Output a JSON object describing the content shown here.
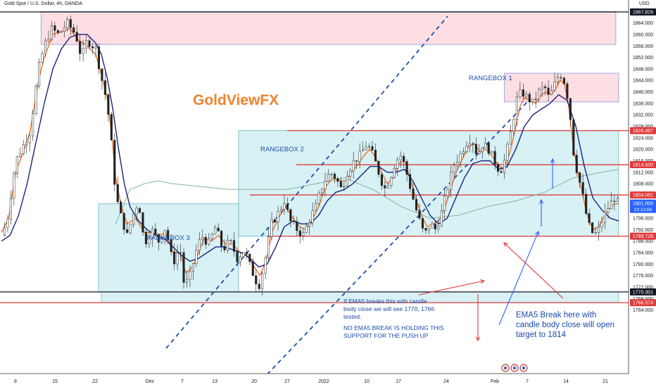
{
  "chart_data": {
    "type": "candlestick",
    "title": "Gold Spot / U.S. Dollar, 4h, OANDA",
    "y_axis_unit": "USD",
    "ylim": [
      1763,
      1871
    ],
    "y_ticks": [
      1764,
      1768,
      1772,
      1776,
      1780,
      1784,
      1788,
      1792,
      1796,
      1800,
      1804,
      1808,
      1812,
      1816,
      1820,
      1824,
      1828,
      1832,
      1836,
      1840,
      1844,
      1848,
      1852,
      1856,
      1860,
      1864
    ],
    "x_tick_labels": [
      "8",
      "15",
      "22",
      "Dec",
      "7",
      "13",
      "20",
      "27",
      "2022",
      "10",
      "17",
      "24",
      "Feb",
      "7",
      "14",
      "21"
    ],
    "price_path": [
      [
        0,
        1790
      ],
      [
        0.4,
        1795
      ],
      [
        1.0,
        1816
      ],
      [
        1.6,
        1822
      ],
      [
        2.0,
        1826
      ],
      [
        2.6,
        1848
      ],
      [
        3.0,
        1856
      ],
      [
        3.5,
        1862
      ],
      [
        4.0,
        1860
      ],
      [
        4.6,
        1864
      ],
      [
        5.2,
        1860
      ],
      [
        5.6,
        1852
      ],
      [
        6.0,
        1858
      ],
      [
        6.6,
        1855
      ],
      [
        7.0,
        1845
      ],
      [
        7.4,
        1836
      ],
      [
        7.7,
        1822
      ],
      [
        8.0,
        1804
      ],
      [
        8.4,
        1796
      ],
      [
        8.8,
        1790
      ],
      [
        9.2,
        1797
      ],
      [
        9.6,
        1802
      ],
      [
        10.0,
        1787
      ],
      [
        10.5,
        1792
      ],
      [
        11.0,
        1788
      ],
      [
        11.5,
        1793
      ],
      [
        12.0,
        1780
      ],
      [
        12.5,
        1786
      ],
      [
        12.8,
        1772
      ],
      [
        13.2,
        1776
      ],
      [
        13.6,
        1784
      ],
      [
        14.0,
        1790
      ],
      [
        14.5,
        1787
      ],
      [
        15.0,
        1793
      ],
      [
        15.5,
        1785
      ],
      [
        16.0,
        1788
      ],
      [
        16.5,
        1782
      ],
      [
        17.0,
        1785
      ],
      [
        17.5,
        1778
      ],
      [
        18.0,
        1772
      ],
      [
        18.4,
        1780
      ],
      [
        18.9,
        1794
      ],
      [
        19.4,
        1798
      ],
      [
        19.8,
        1802
      ],
      [
        20.2,
        1795
      ],
      [
        20.7,
        1792
      ],
      [
        21.1,
        1790
      ],
      [
        21.6,
        1796
      ],
      [
        22.0,
        1800
      ],
      [
        22.5,
        1808
      ],
      [
        23.0,
        1812
      ],
      [
        23.4,
        1810
      ],
      [
        23.8,
        1806
      ],
      [
        24.2,
        1812
      ],
      [
        24.7,
        1816
      ],
      [
        25.1,
        1818
      ],
      [
        25.6,
        1822
      ],
      [
        26.0,
        1818
      ],
      [
        26.4,
        1812
      ],
      [
        26.8,
        1806
      ],
      [
        27.2,
        1810
      ],
      [
        27.6,
        1816
      ],
      [
        28.0,
        1818
      ],
      [
        28.4,
        1811
      ],
      [
        28.8,
        1803
      ],
      [
        29.2,
        1796
      ],
      [
        29.6,
        1790
      ],
      [
        30.0,
        1794
      ],
      [
        30.4,
        1792
      ],
      [
        30.8,
        1798
      ],
      [
        31.3,
        1808
      ],
      [
        31.7,
        1815
      ],
      [
        32.1,
        1818
      ],
      [
        32.5,
        1822
      ],
      [
        32.9,
        1824
      ],
      [
        33.3,
        1818
      ],
      [
        33.7,
        1822
      ],
      [
        34.1,
        1820
      ],
      [
        34.5,
        1816
      ],
      [
        34.9,
        1812
      ],
      [
        35.2,
        1816
      ],
      [
        35.5,
        1822
      ],
      [
        35.8,
        1830
      ],
      [
        36.1,
        1838
      ],
      [
        36.4,
        1840
      ],
      [
        36.8,
        1838
      ],
      [
        37.2,
        1836
      ],
      [
        37.6,
        1840
      ],
      [
        38.0,
        1842
      ],
      [
        38.3,
        1838
      ],
      [
        38.6,
        1841
      ],
      [
        38.9,
        1845
      ],
      [
        39.2,
        1846
      ],
      [
        39.5,
        1842
      ],
      [
        39.8,
        1832
      ],
      [
        40.0,
        1820
      ],
      [
        40.3,
        1812
      ],
      [
        40.6,
        1806
      ],
      [
        40.9,
        1798
      ],
      [
        41.2,
        1792
      ],
      [
        41.5,
        1790
      ],
      [
        41.8,
        1792
      ],
      [
        42.1,
        1796
      ],
      [
        42.5,
        1800
      ],
      [
        42.9,
        1803
      ],
      [
        43.2,
        1801
      ]
    ],
    "ema_fast": [
      [
        0,
        1791
      ],
      [
        0.5,
        1796
      ],
      [
        1.0,
        1812
      ],
      [
        1.6,
        1820
      ],
      [
        2.0,
        1826
      ],
      [
        2.6,
        1844
      ],
      [
        3.0,
        1852
      ],
      [
        3.6,
        1860
      ],
      [
        4.2,
        1861
      ],
      [
        4.8,
        1862
      ],
      [
        5.4,
        1858
      ],
      [
        6.0,
        1856
      ],
      [
        6.6,
        1853
      ],
      [
        7.0,
        1846
      ],
      [
        7.4,
        1838
      ],
      [
        7.7,
        1826
      ],
      [
        8.0,
        1810
      ],
      [
        8.4,
        1800
      ],
      [
        8.8,
        1794
      ],
      [
        9.4,
        1796
      ],
      [
        10.0,
        1791
      ],
      [
        10.5,
        1791
      ],
      [
        11.0,
        1790
      ],
      [
        11.5,
        1791
      ],
      [
        12.0,
        1784
      ],
      [
        12.5,
        1784
      ],
      [
        12.9,
        1777
      ],
      [
        13.4,
        1779
      ],
      [
        13.8,
        1784
      ],
      [
        14.2,
        1789
      ],
      [
        14.7,
        1788
      ],
      [
        15.2,
        1790
      ],
      [
        15.7,
        1787
      ],
      [
        16.2,
        1787
      ],
      [
        16.7,
        1784
      ],
      [
        17.2,
        1783
      ],
      [
        17.7,
        1779
      ],
      [
        18.1,
        1776
      ],
      [
        18.5,
        1781
      ],
      [
        19.0,
        1792
      ],
      [
        19.5,
        1797
      ],
      [
        19.9,
        1800
      ],
      [
        20.4,
        1796
      ],
      [
        20.9,
        1793
      ],
      [
        21.3,
        1792
      ],
      [
        21.8,
        1796
      ],
      [
        22.2,
        1800
      ],
      [
        22.7,
        1807
      ],
      [
        23.2,
        1810
      ],
      [
        23.7,
        1809
      ],
      [
        24.1,
        1809
      ],
      [
        24.5,
        1812
      ],
      [
        25.0,
        1815
      ],
      [
        25.4,
        1818
      ],
      [
        25.8,
        1820
      ],
      [
        26.2,
        1817
      ],
      [
        26.6,
        1812
      ],
      [
        27.0,
        1808
      ],
      [
        27.4,
        1810
      ],
      [
        27.8,
        1815
      ],
      [
        28.2,
        1816
      ],
      [
        28.6,
        1810
      ],
      [
        29.0,
        1803
      ],
      [
        29.4,
        1797
      ],
      [
        29.8,
        1793
      ],
      [
        30.2,
        1794
      ],
      [
        30.6,
        1795
      ],
      [
        31.0,
        1799
      ],
      [
        31.5,
        1807
      ],
      [
        31.9,
        1813
      ],
      [
        32.3,
        1817
      ],
      [
        32.7,
        1821
      ],
      [
        33.1,
        1822
      ],
      [
        33.5,
        1819
      ],
      [
        33.9,
        1820
      ],
      [
        34.3,
        1818
      ],
      [
        34.7,
        1815
      ],
      [
        35.1,
        1813
      ],
      [
        35.4,
        1816
      ],
      [
        35.7,
        1821
      ],
      [
        36.0,
        1828
      ],
      [
        36.3,
        1835
      ],
      [
        36.6,
        1838
      ],
      [
        37.0,
        1837
      ],
      [
        37.4,
        1836
      ],
      [
        37.8,
        1839
      ],
      [
        38.2,
        1840
      ],
      [
        38.5,
        1839
      ],
      [
        38.8,
        1841
      ],
      [
        39.1,
        1844
      ],
      [
        39.4,
        1843
      ],
      [
        39.7,
        1835
      ],
      [
        40.0,
        1822
      ],
      [
        40.3,
        1813
      ],
      [
        40.6,
        1806
      ],
      [
        40.9,
        1799
      ],
      [
        41.2,
        1794
      ],
      [
        41.5,
        1792
      ],
      [
        41.8,
        1793
      ],
      [
        42.1,
        1796
      ],
      [
        42.5,
        1799
      ],
      [
        42.9,
        1801
      ],
      [
        43.2,
        1801
      ]
    ],
    "ema_slow": [
      [
        0,
        1788
      ],
      [
        0.6,
        1790
      ],
      [
        1.2,
        1797
      ],
      [
        1.8,
        1808
      ],
      [
        2.4,
        1822
      ],
      [
        3.0,
        1836
      ],
      [
        3.6,
        1848
      ],
      [
        4.2,
        1855
      ],
      [
        4.8,
        1859
      ],
      [
        5.4,
        1860
      ],
      [
        6.0,
        1860
      ],
      [
        6.6,
        1857
      ],
      [
        7.0,
        1853
      ],
      [
        7.4,
        1845
      ],
      [
        7.8,
        1834
      ],
      [
        8.2,
        1820
      ],
      [
        8.6,
        1808
      ],
      [
        9.0,
        1800
      ],
      [
        9.6,
        1795
      ],
      [
        10.2,
        1792
      ],
      [
        10.8,
        1790
      ],
      [
        11.4,
        1789
      ],
      [
        12.0,
        1786
      ],
      [
        12.6,
        1783
      ],
      [
        13.2,
        1781
      ],
      [
        13.8,
        1782
      ],
      [
        14.4,
        1784
      ],
      [
        15.0,
        1786
      ],
      [
        15.6,
        1786
      ],
      [
        16.2,
        1785
      ],
      [
        16.8,
        1784
      ],
      [
        17.4,
        1782
      ],
      [
        18.0,
        1779
      ],
      [
        18.6,
        1780
      ],
      [
        19.2,
        1786
      ],
      [
        19.8,
        1793
      ],
      [
        20.4,
        1795
      ],
      [
        21.0,
        1794
      ],
      [
        21.6,
        1794
      ],
      [
        22.2,
        1797
      ],
      [
        22.8,
        1802
      ],
      [
        23.4,
        1805
      ],
      [
        24.0,
        1806
      ],
      [
        24.6,
        1808
      ],
      [
        25.2,
        1811
      ],
      [
        25.8,
        1814
      ],
      [
        26.4,
        1814
      ],
      [
        27.0,
        1812
      ],
      [
        27.6,
        1812
      ],
      [
        28.2,
        1813
      ],
      [
        28.8,
        1809
      ],
      [
        29.4,
        1803
      ],
      [
        30.0,
        1797
      ],
      [
        30.6,
        1794
      ],
      [
        31.2,
        1796
      ],
      [
        31.8,
        1803
      ],
      [
        32.4,
        1810
      ],
      [
        33.0,
        1815
      ],
      [
        33.6,
        1816
      ],
      [
        34.2,
        1816
      ],
      [
        34.8,
        1813
      ],
      [
        35.4,
        1814
      ],
      [
        36.0,
        1820
      ],
      [
        36.6,
        1828
      ],
      [
        37.2,
        1832
      ],
      [
        37.8,
        1834
      ],
      [
        38.4,
        1836
      ],
      [
        39.0,
        1839
      ],
      [
        39.6,
        1837
      ],
      [
        40.2,
        1828
      ],
      [
        40.8,
        1814
      ],
      [
        41.4,
        1803
      ],
      [
        42.0,
        1799
      ],
      [
        42.6,
        1796
      ],
      [
        43.2,
        1795
      ]
    ],
    "ma_long": [
      [
        8.0,
        1794
      ],
      [
        9.0,
        1806
      ],
      [
        10.0,
        1808
      ],
      [
        11.0,
        1809
      ],
      [
        12.0,
        1808
      ],
      [
        14.0,
        1807
      ],
      [
        16.0,
        1806
      ],
      [
        18.0,
        1806
      ],
      [
        20.0,
        1806
      ],
      [
        22.0,
        1808
      ],
      [
        24.0,
        1810
      ],
      [
        26.0,
        1806
      ],
      [
        28.0,
        1800
      ],
      [
        30.0,
        1796
      ],
      [
        32.0,
        1797
      ],
      [
        34.0,
        1800
      ],
      [
        36.0,
        1802
      ],
      [
        38.0,
        1805
      ],
      [
        40.0,
        1810
      ],
      [
        42.0,
        1812
      ],
      [
        43.2,
        1813
      ]
    ],
    "price_levels": [
      {
        "label": "1867.826",
        "value": 1867.826,
        "color": "#131722"
      },
      {
        "label": "1826.497",
        "value": 1826.497,
        "color": "#e03a3a"
      },
      {
        "label": "1814.630",
        "value": 1814.63,
        "color": "#e03a3a"
      },
      {
        "label": "1804.081",
        "value": 1804.081,
        "color": "#e03a3a"
      },
      {
        "label": "1789.729",
        "value": 1789.729,
        "color": "#e03a3a"
      },
      {
        "label": "1770.301",
        "value": 1770.301,
        "color": "#131722"
      },
      {
        "label": "1766.574",
        "value": 1766.574,
        "color": "#e03a3a"
      }
    ],
    "current_price": {
      "value": 1801.0,
      "label": "1801.000",
      "countdown": "02:12:09",
      "color": "#2962ff"
    },
    "range_boxes": [
      {
        "label": "",
        "x0": 1.0,
        "x1": 43.0,
        "y0": 1856.5,
        "y1": 1868,
        "fill": "#fbd3da",
        "stroke": "#8a9ae0"
      },
      {
        "label": "RANGEBOX 1",
        "x0": 35.2,
        "x1": 43.2,
        "y0": 1836.5,
        "y1": 1846.5,
        "fill": "#fbd3da",
        "stroke": "#8a9ae0"
      },
      {
        "label": "RANGEBOX 2",
        "x0": 16.6,
        "x1": 43.2,
        "y0": 1789.7,
        "y1": 1826.5,
        "fill": "#c9ecf2",
        "stroke": "#6fb6c9"
      },
      {
        "label": "RANGEBOX 3",
        "x0": 6.8,
        "x1": 16.6,
        "y0": 1770.3,
        "y1": 1801.0,
        "fill": "#c9ecf2",
        "stroke": "#6fb6c9"
      },
      {
        "label": "",
        "x0": 7.0,
        "x1": 43.2,
        "y0": 1766.6,
        "y1": 1770.3,
        "fill": "#c9ecf2",
        "stroke": "#6fb6c9"
      }
    ],
    "annotations": {
      "brand": "GoldViewFX",
      "note_ema_break": [
        "If EMA5 breaks this with candle",
        "body close we will see 1770, 1766",
        "tested."
      ],
      "note_holding": [
        "NO EMA5 BREAK IS HOLDING THIS",
        "SUPPORT FOR THE PUSH UP"
      ],
      "note_target": [
        "EMA5 Break here with",
        "candle body close will open",
        "target to 1814"
      ]
    },
    "grid": false,
    "legend": "none"
  }
}
